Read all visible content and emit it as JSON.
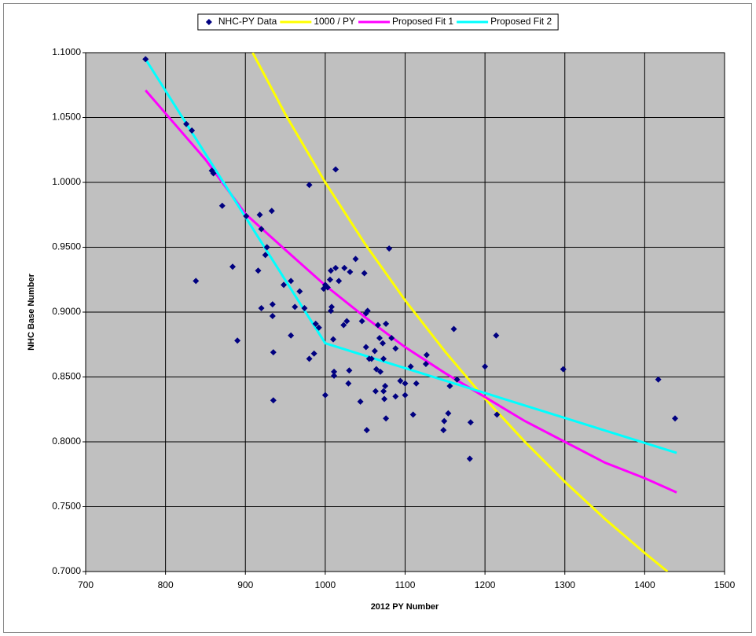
{
  "chart_data": {
    "type": "scatter",
    "x_label": "2012 PY Number",
    "y_label": "NHC Base Number",
    "xlim": [
      700,
      1500
    ],
    "ylim": [
      0.7,
      1.1
    ],
    "xticks": [
      700,
      800,
      900,
      1000,
      1100,
      1200,
      1300,
      1400,
      1500
    ],
    "yticks": [
      {
        "value": 0.7,
        "label": "0.7000"
      },
      {
        "value": 0.75,
        "label": "0.7500"
      },
      {
        "value": 0.8,
        "label": "0.8000"
      },
      {
        "value": 0.85,
        "label": "0.8500"
      },
      {
        "value": 0.9,
        "label": "0.9000"
      },
      {
        "value": 0.95,
        "label": "0.9500"
      },
      {
        "value": 1.0,
        "label": "1.0000"
      },
      {
        "value": 1.05,
        "label": "1.0500"
      },
      {
        "value": 1.1,
        "label": "1.1000"
      }
    ],
    "grid": true,
    "legend": "top",
    "series": [
      {
        "name": "NHC-PY Data",
        "color": "#000080",
        "mode": "markers",
        "x": [
          775,
          826,
          833,
          858,
          860,
          871,
          838,
          884,
          890,
          901,
          918,
          920,
          927,
          925,
          916,
          933,
          920,
          934,
          934,
          935,
          935,
          948,
          957,
          957,
          962,
          968,
          974,
          980,
          980,
          988,
          992,
          986,
          998,
          1000,
          1003,
          1000,
          1006,
          1007,
          1008,
          1007,
          1010,
          1013,
          1013,
          1017,
          1011,
          1011,
          1024,
          1023,
          1027,
          1031,
          1030,
          1029,
          1038,
          1044,
          1049,
          1046,
          1051,
          1053,
          1051,
          1055,
          1052,
          1058,
          1062,
          1066,
          1064,
          1063,
          1068,
          1072,
          1073,
          1069,
          1073,
          1075,
          1074,
          1076,
          1080,
          1076,
          1083,
          1088,
          1088,
          1094,
          1100,
          1100,
          1107,
          1110,
          1114,
          1126,
          1127,
          1149,
          1148,
          1154,
          1156,
          1161,
          1165,
          1182,
          1181,
          1200,
          1214,
          1215,
          1298,
          1417,
          1438
        ],
        "values": [
          1.095,
          1.045,
          1.04,
          1.009,
          1.007,
          0.982,
          0.924,
          0.935,
          0.878,
          0.974,
          0.975,
          0.964,
          0.95,
          0.944,
          0.932,
          0.978,
          0.903,
          0.906,
          0.897,
          0.869,
          0.832,
          0.921,
          0.924,
          0.882,
          0.904,
          0.916,
          0.903,
          0.998,
          0.864,
          0.891,
          0.888,
          0.868,
          0.918,
          0.921,
          0.919,
          0.836,
          0.925,
          0.932,
          0.904,
          0.901,
          0.879,
          1.01,
          0.934,
          0.924,
          0.854,
          0.851,
          0.934,
          0.89,
          0.893,
          0.931,
          0.855,
          0.845,
          0.941,
          0.831,
          0.93,
          0.893,
          0.899,
          0.901,
          0.873,
          0.864,
          0.809,
          0.864,
          0.87,
          0.89,
          0.856,
          0.839,
          0.88,
          0.876,
          0.864,
          0.854,
          0.839,
          0.843,
          0.833,
          0.818,
          0.949,
          0.891,
          0.88,
          0.872,
          0.835,
          0.847,
          0.845,
          0.836,
          0.858,
          0.821,
          0.845,
          0.86,
          0.867,
          0.816,
          0.809,
          0.822,
          0.843,
          0.887,
          0.848,
          0.815,
          0.787,
          0.858,
          0.882,
          0.821,
          0.856,
          0.848,
          0.818
        ]
      },
      {
        "name": "1000 / PY",
        "color": "#ffff00",
        "mode": "lines",
        "x": [
          909.09,
          950,
          1000,
          1050,
          1100,
          1150,
          1200,
          1250,
          1300,
          1350,
          1400,
          1428.57
        ],
        "values": [
          1.1,
          1.0526,
          1.0,
          0.9524,
          0.9091,
          0.8696,
          0.8333,
          0.8,
          0.7692,
          0.7407,
          0.7143,
          0.7
        ]
      },
      {
        "name": "Proposed Fit 1",
        "color": "#ff00ff",
        "mode": "lines",
        "x": [
          775,
          850,
          900,
          950,
          1000,
          1050,
          1100,
          1150,
          1200,
          1250,
          1300,
          1350,
          1400,
          1440
        ],
        "values": [
          1.071,
          1.0176,
          0.9758,
          0.948,
          0.9206,
          0.896,
          0.873,
          0.853,
          0.8345,
          0.816,
          0.8,
          0.784,
          0.772,
          0.761
        ]
      },
      {
        "name": "Proposed Fit 2",
        "color": "#00ffff",
        "mode": "lines",
        "x": [
          775,
          1000,
          1440
        ],
        "values": [
          1.095,
          0.876,
          0.7915
        ]
      }
    ]
  }
}
